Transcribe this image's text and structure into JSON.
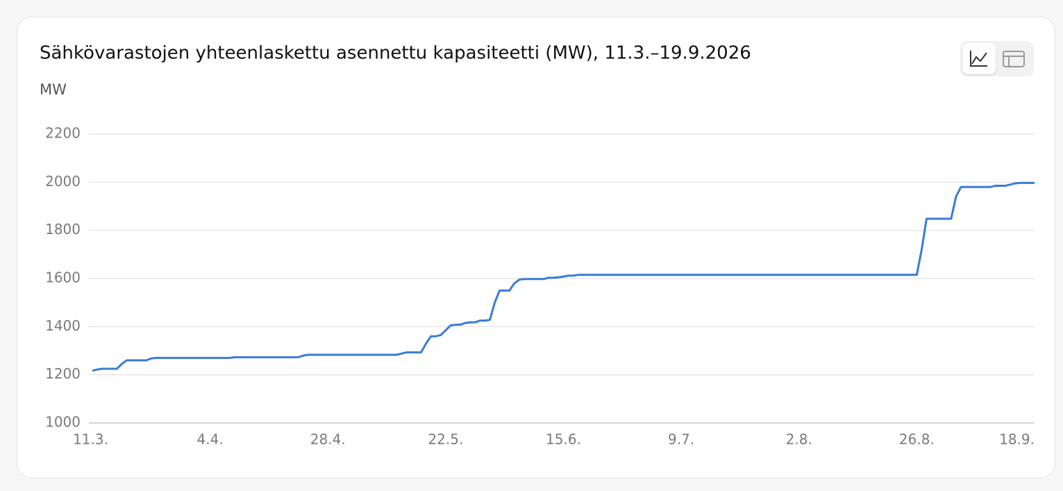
{
  "chart_data": {
    "type": "line",
    "title": "Sähkövarastojen yhteenlaskettu asennettu kapasiteetti (MW), 11.3.–19.9.2026",
    "y_label": "MW",
    "categories": [
      "11.3.",
      null,
      null,
      null,
      null,
      null,
      null,
      null,
      null,
      null,
      null,
      null,
      null,
      null,
      null,
      null,
      null,
      null,
      null,
      null,
      null,
      null,
      null,
      null,
      "4.4.",
      null,
      null,
      null,
      null,
      null,
      null,
      null,
      null,
      null,
      null,
      null,
      null,
      null,
      null,
      null,
      null,
      null,
      null,
      null,
      null,
      null,
      null,
      null,
      "28.4.",
      null,
      null,
      null,
      null,
      null,
      null,
      null,
      null,
      null,
      null,
      null,
      null,
      null,
      null,
      null,
      null,
      null,
      null,
      null,
      null,
      null,
      null,
      null,
      "22.5.",
      null,
      null,
      null,
      null,
      null,
      null,
      null,
      null,
      null,
      null,
      null,
      null,
      null,
      null,
      null,
      null,
      null,
      null,
      null,
      null,
      null,
      null,
      null,
      "15.6.",
      null,
      null,
      null,
      null,
      null,
      null,
      null,
      null,
      null,
      null,
      null,
      null,
      null,
      null,
      null,
      null,
      null,
      null,
      null,
      null,
      null,
      null,
      null,
      "9.7.",
      null,
      null,
      null,
      null,
      null,
      null,
      null,
      null,
      null,
      null,
      null,
      null,
      null,
      null,
      null,
      null,
      null,
      null,
      null,
      null,
      null,
      null,
      null,
      "2.8.",
      null,
      null,
      null,
      null,
      null,
      null,
      null,
      null,
      null,
      null,
      null,
      null,
      null,
      null,
      null,
      null,
      null,
      null,
      null,
      null,
      null,
      null,
      null,
      "26.8.",
      null,
      null,
      null,
      null,
      null,
      null,
      null,
      null,
      null,
      null,
      null,
      null,
      null,
      null,
      null,
      null,
      null,
      null,
      null,
      null,
      null,
      null,
      null,
      "18.9."
    ],
    "values": [
      1217,
      1222,
      1225,
      1225,
      1225,
      1225,
      1245,
      1260,
      1260,
      1260,
      1260,
      1260,
      1268,
      1270,
      1270,
      1270,
      1270,
      1270,
      1270,
      1270,
      1270,
      1270,
      1270,
      1270,
      1270,
      1270,
      1270,
      1270,
      1270,
      1273,
      1273,
      1273,
      1273,
      1273,
      1273,
      1273,
      1273,
      1273,
      1273,
      1273,
      1273,
      1273,
      1273,
      1280,
      1283,
      1283,
      1283,
      1283,
      1283,
      1283,
      1283,
      1283,
      1283,
      1283,
      1283,
      1283,
      1283,
      1283,
      1283,
      1283,
      1283,
      1283,
      1283,
      1288,
      1293,
      1293,
      1293,
      1293,
      1330,
      1360,
      1360,
      1365,
      1385,
      1405,
      1408,
      1408,
      1415,
      1418,
      1418,
      1425,
      1425,
      1428,
      1500,
      1550,
      1550,
      1550,
      1580,
      1595,
      1598,
      1598,
      1598,
      1598,
      1598,
      1603,
      1603,
      1605,
      1608,
      1612,
      1612,
      1615,
      1615,
      1615,
      1615,
      1615,
      1615,
      1615,
      1615,
      1615,
      1615,
      1615,
      1615,
      1615,
      1615,
      1615,
      1615,
      1615,
      1615,
      1615,
      1615,
      1615,
      1615,
      1615,
      1615,
      1615,
      1615,
      1615,
      1615,
      1615,
      1615,
      1615,
      1615,
      1615,
      1615,
      1615,
      1615,
      1615,
      1615,
      1615,
      1615,
      1615,
      1615,
      1615,
      1615,
      1615,
      1615,
      1615,
      1615,
      1615,
      1615,
      1615,
      1615,
      1615,
      1615,
      1615,
      1615,
      1615,
      1615,
      1615,
      1615,
      1615,
      1615,
      1615,
      1615,
      1615,
      1615,
      1615,
      1615,
      1615,
      1615,
      1720,
      1848,
      1848,
      1848,
      1848,
      1848,
      1848,
      1940,
      1980,
      1980,
      1980,
      1980,
      1980,
      1980,
      1980,
      1985,
      1985,
      1985,
      1990,
      1995,
      1997,
      1997,
      1997,
      1997
    ],
    "color": "#3a7bd5",
    "ylim": [
      1000,
      2200
    ],
    "yticks": [
      1000,
      1200,
      1400,
      1600,
      1800,
      2000,
      2200
    ],
    "grid": true
  }
}
